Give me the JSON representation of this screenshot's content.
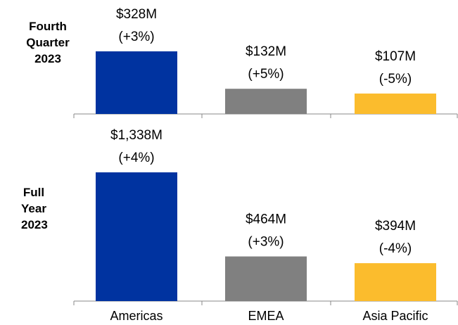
{
  "chart_data": [
    {
      "type": "bar",
      "title": "Fourth Quarter 2023",
      "categories": [
        null,
        null,
        null
      ],
      "values": [
        328,
        132,
        107
      ],
      "value_labels": [
        "$328M",
        "$132M",
        "$107M"
      ],
      "changes": [
        "(+3%)",
        "(+5%)",
        "(-5%)"
      ],
      "colors": [
        "#0033a0",
        "#808080",
        "#fbbc2d"
      ]
    },
    {
      "type": "bar",
      "title": "Full Year 2023",
      "categories": [
        "Americas",
        "EMEA",
        "Asia Pacific"
      ],
      "values": [
        1338,
        464,
        394
      ],
      "value_labels": [
        "$1,338M",
        "$464M",
        "$394M"
      ],
      "changes": [
        "(+4%)",
        "(+3%)",
        "(-4%)"
      ],
      "colors": [
        "#0033a0",
        "#808080",
        "#fbbc2d"
      ]
    }
  ]
}
